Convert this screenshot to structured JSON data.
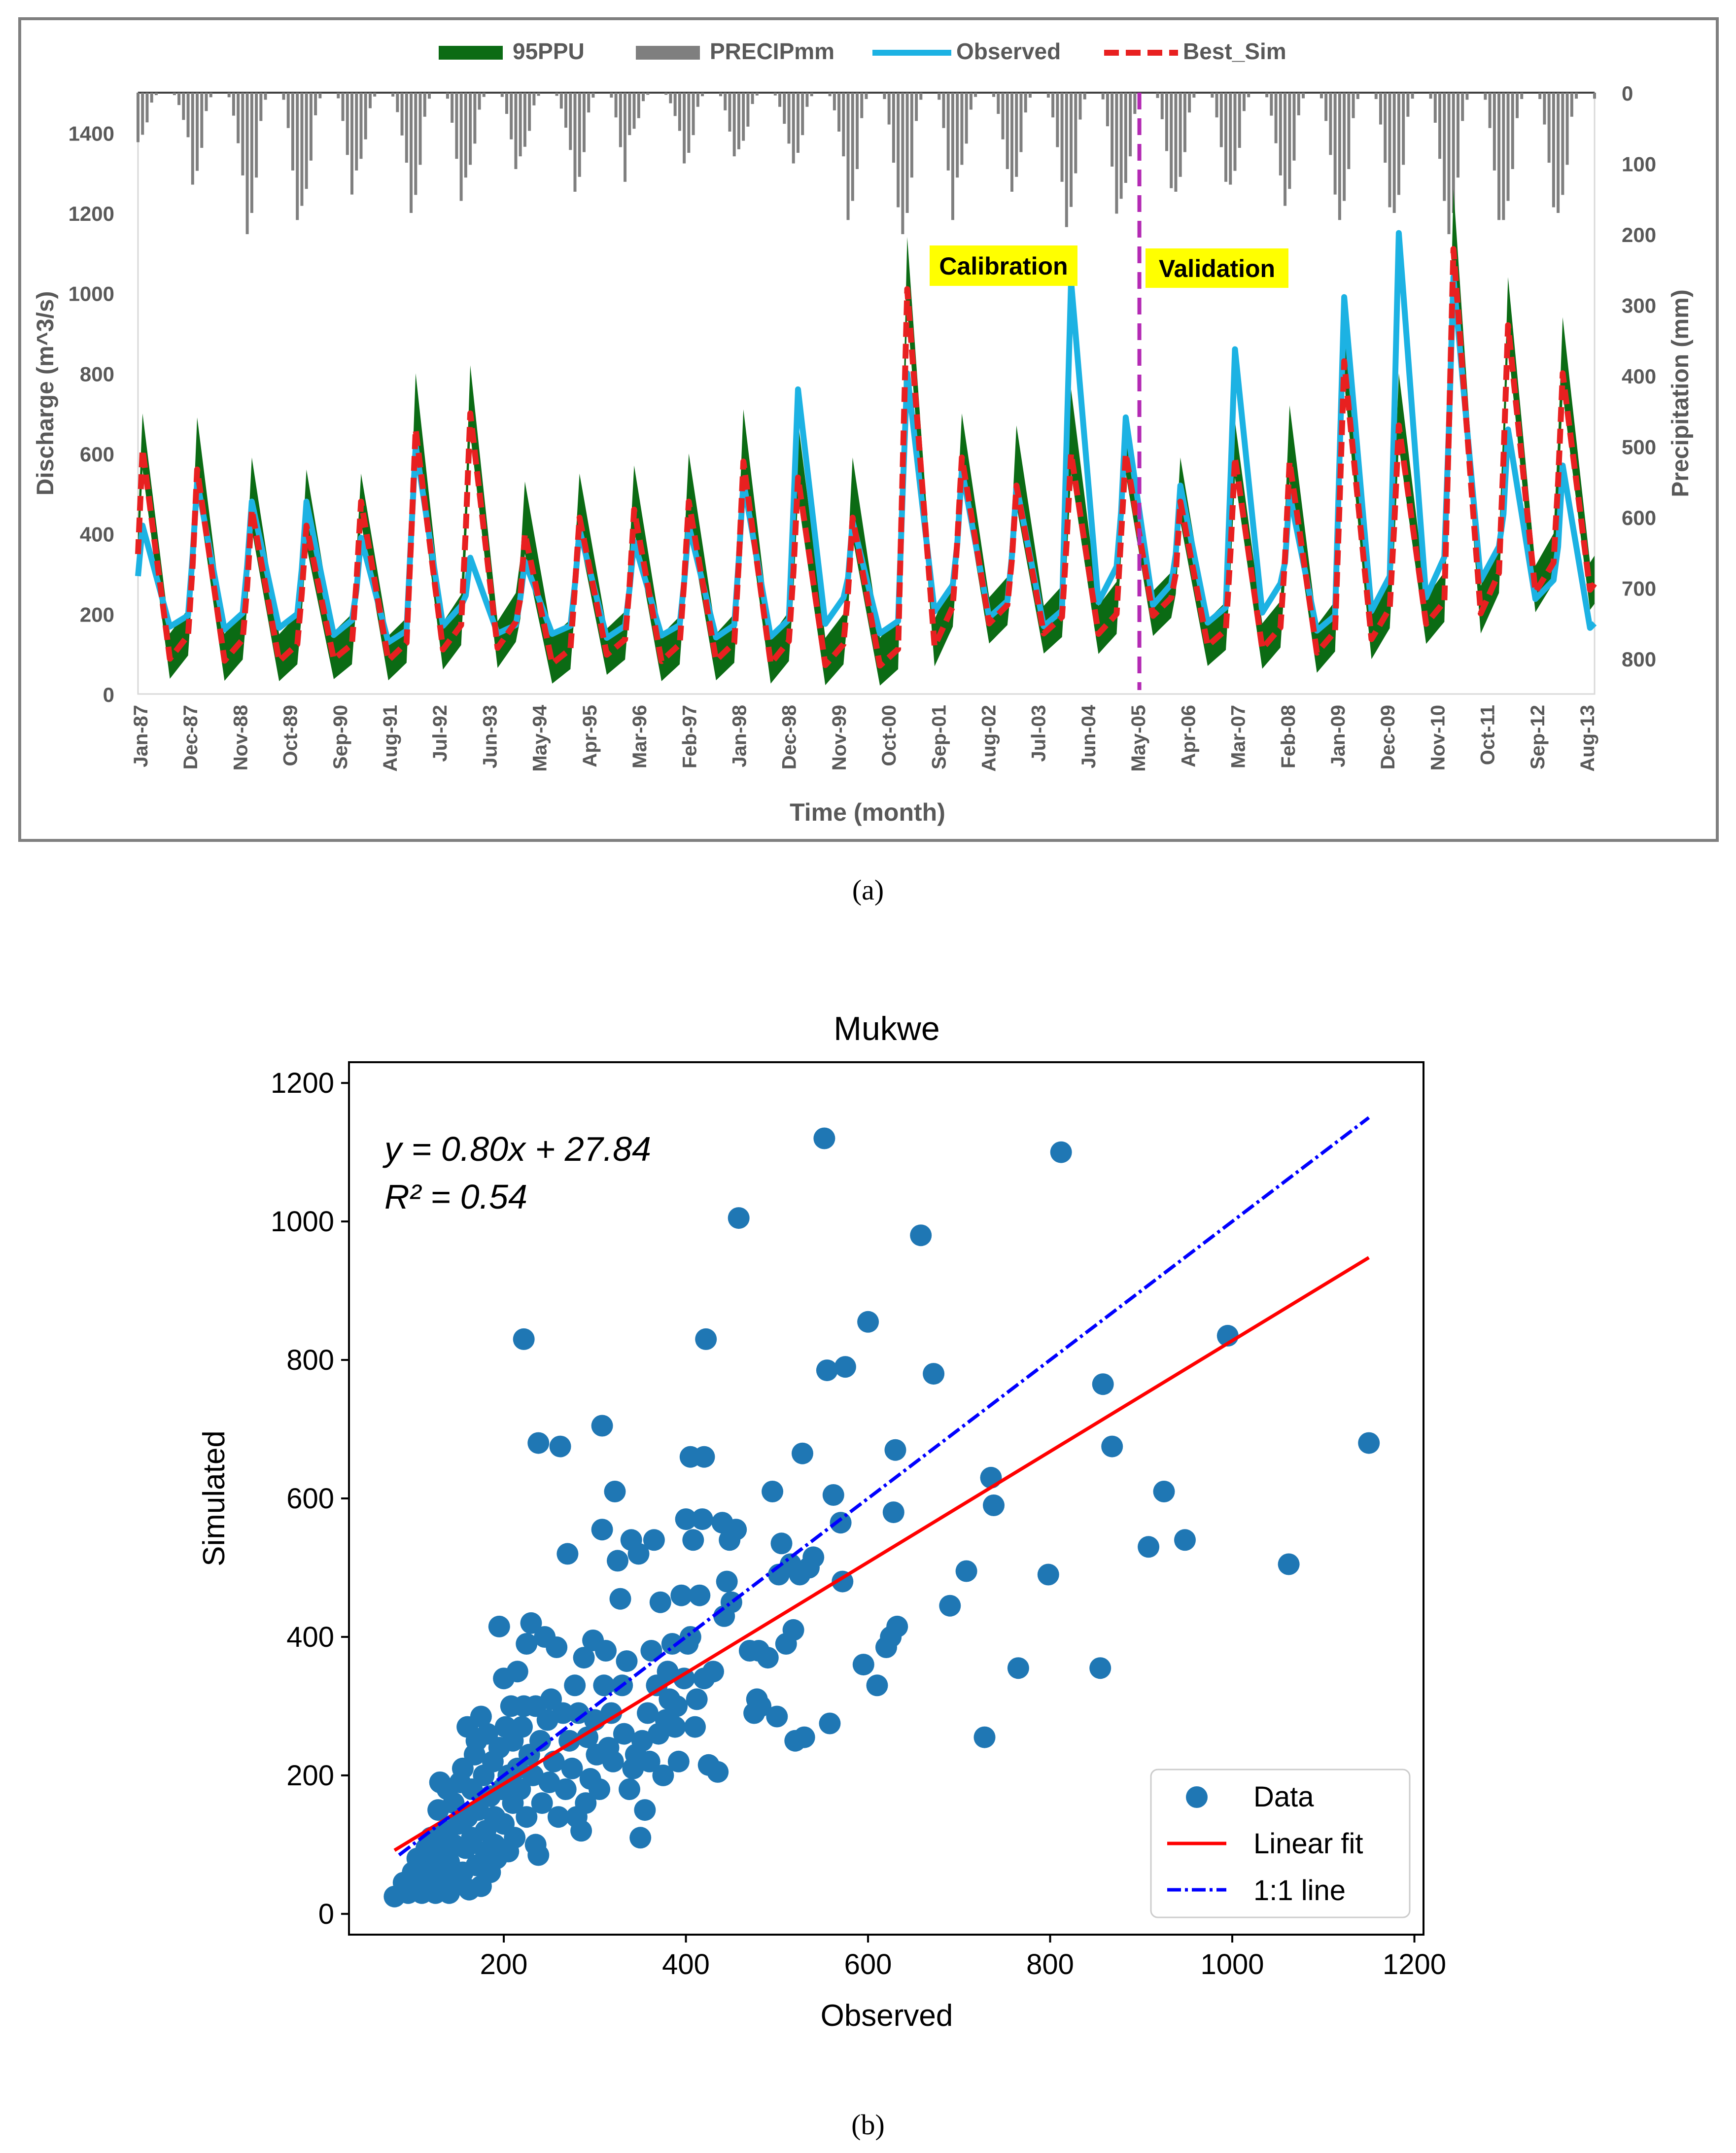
{
  "panel_a": {
    "label": "(a)"
  },
  "panel_b": {
    "label": "(b)"
  },
  "colors": {
    "ppu": "#0b6b14",
    "precip": "#7f7f7f",
    "observed": "#1cb2e3",
    "best_sim": "#e82020",
    "split_line": "#b42ab4",
    "highlight": "#ffff00",
    "scatter": "#1f77b4",
    "fit": "#ff0000",
    "one_to_one": "#0000ff"
  },
  "chart_data": [
    {
      "type": "line",
      "title": "",
      "xlabel": "Time (month)",
      "ylabel": "Discharge (m^3/s)",
      "y2label": "Precipitation (mm)",
      "ylim": [
        0,
        1500
      ],
      "y2lim": [
        0,
        850
      ],
      "yticks": [
        0,
        200,
        400,
        600,
        800,
        1000,
        1200,
        1400
      ],
      "y2ticks": [
        0,
        100,
        200,
        300,
        400,
        500,
        600,
        700,
        800
      ],
      "legend": [
        "95PPU",
        "PRECIPmm",
        "Observed",
        "Best_Sim"
      ],
      "x_tick_labels": [
        "Jan-87",
        "Dec-87",
        "Nov-88",
        "Oct-89",
        "Sep-90",
        "Aug-91",
        "Jul-92",
        "Jun-93",
        "May-94",
        "Apr-95",
        "Mar-96",
        "Feb-97",
        "Jan-98",
        "Dec-98",
        "Nov-99",
        "Oct-00",
        "Sep-01",
        "Aug-02",
        "Jul-03",
        "Jun-04",
        "May-05",
        "Apr-06",
        "Mar-07",
        "Feb-08",
        "Jan-09",
        "Dec-09",
        "Nov-10",
        "Oct-11",
        "Sep-12",
        "Aug-13"
      ],
      "annotations": [
        "Calibration",
        "Validation"
      ],
      "split_month_index": 220,
      "series": [
        {
          "name": "Observed",
          "annual_peaks": [
            420,
            530,
            480,
            480,
            390,
            620,
            340,
            330,
            410,
            380,
            420,
            530,
            760,
            430,
            800,
            560,
            520,
            1030,
            690,
            520,
            860,
            500,
            990,
            1150,
            1040,
            660,
            570
          ],
          "annual_lows": [
            140,
            120,
            130,
            110,
            100,
            120,
            130,
            130,
            110,
            120,
            110,
            100,
            110,
            120,
            140,
            150,
            130,
            140,
            170,
            140,
            130,
            120,
            120,
            140,
            200,
            190,
            120
          ]
        },
        {
          "name": "Best_Sim",
          "annual_peaks": [
            610,
            560,
            460,
            420,
            480,
            660,
            700,
            400,
            440,
            460,
            480,
            580,
            540,
            440,
            1010,
            590,
            520,
            600,
            600,
            480,
            590,
            580,
            830,
            670,
            1110,
            920,
            800
          ],
          "annual_lows": [
            30,
            30,
            40,
            50,
            40,
            50,
            50,
            40,
            60,
            40,
            40,
            20,
            20,
            30,
            20,
            130,
            110,
            100,
            150,
            80,
            60,
            50,
            60,
            120,
            100,
            180,
            200
          ]
        },
        {
          "name": "95PPU_upper",
          "annual_peaks": [
            700,
            690,
            590,
            560,
            550,
            800,
            820,
            530,
            550,
            570,
            600,
            710,
            680,
            590,
            1140,
            700,
            670,
            760,
            680,
            590,
            680,
            720,
            960,
            800,
            1260,
            1040,
            940
          ]
        },
        {
          "name": "PRECIPmm",
          "monthly_max_by_year": [
            70,
            130,
            200,
            160,
            110,
            170,
            120,
            90,
            140,
            60,
            100,
            80,
            100,
            180,
            200,
            120,
            140,
            190,
            150,
            140,
            130,
            160,
            180,
            170,
            200,
            180,
            170
          ]
        }
      ]
    },
    {
      "type": "scatter",
      "title": "Mukwe",
      "xlabel": "Observed",
      "ylabel": "Simulated",
      "xlim": [
        30,
        1210
      ],
      "ylim": [
        -30,
        1230
      ],
      "xticks": [
        200,
        400,
        600,
        800,
        1000,
        1200
      ],
      "yticks": [
        0,
        200,
        400,
        600,
        800,
        1000,
        1200
      ],
      "equation": "y = 0.80x + 27.84",
      "r2": "R² = 0.54",
      "fit": {
        "slope": 0.8,
        "intercept": 27.84,
        "x_range": [
          80,
          1150
        ]
      },
      "one_to_one": {
        "x_range": [
          85,
          1150
        ]
      },
      "legend": [
        "Data",
        "Linear fit",
        "1:1 line"
      ],
      "points": [
        [
          80,
          25
        ],
        [
          90,
          45
        ],
        [
          95,
          30
        ],
        [
          100,
          60
        ],
        [
          100,
          35
        ],
        [
          105,
          80
        ],
        [
          110,
          50
        ],
        [
          110,
          30
        ],
        [
          115,
          95
        ],
        [
          115,
          60
        ],
        [
          120,
          110
        ],
        [
          120,
          40
        ],
        [
          125,
          70
        ],
        [
          125,
          30
        ],
        [
          128,
          150
        ],
        [
          130,
          190
        ],
        [
          130,
          90
        ],
        [
          135,
          55
        ],
        [
          135,
          120
        ],
        [
          138,
          180
        ],
        [
          140,
          30
        ],
        [
          140,
          75
        ],
        [
          145,
          160
        ],
        [
          145,
          100
        ],
        [
          150,
          45
        ],
        [
          150,
          130
        ],
        [
          152,
          190
        ],
        [
          155,
          60
        ],
        [
          155,
          210
        ],
        [
          158,
          95
        ],
        [
          160,
          140
        ],
        [
          160,
          270
        ],
        [
          162,
          35
        ],
        [
          165,
          110
        ],
        [
          165,
          180
        ],
        [
          168,
          230
        ],
        [
          170,
          70
        ],
        [
          170,
          250
        ],
        [
          172,
          150
        ],
        [
          175,
          285
        ],
        [
          175,
          40
        ],
        [
          178,
          200
        ],
        [
          180,
          120
        ],
        [
          180,
          90
        ],
        [
          182,
          260
        ],
        [
          185,
          170
        ],
        [
          185,
          60
        ],
        [
          188,
          220
        ],
        [
          190,
          140
        ],
        [
          190,
          100
        ],
        [
          192,
          80
        ],
        [
          195,
          415
        ],
        [
          195,
          240
        ],
        [
          198,
          180
        ],
        [
          200,
          340
        ],
        [
          200,
          130
        ],
        [
          202,
          270
        ],
        [
          205,
          200
        ],
        [
          205,
          90
        ],
        [
          208,
          300
        ],
        [
          210,
          160
        ],
        [
          210,
          250
        ],
        [
          212,
          110
        ],
        [
          215,
          350
        ],
        [
          215,
          210
        ],
        [
          218,
          180
        ],
        [
          220,
          270
        ],
        [
          222,
          300
        ],
        [
          222,
          830
        ],
        [
          225,
          140
        ],
        [
          225,
          390
        ],
        [
          228,
          230
        ],
        [
          230,
          420
        ],
        [
          232,
          200
        ],
        [
          235,
          300
        ],
        [
          235,
          100
        ],
        [
          238,
          85
        ],
        [
          238,
          680
        ],
        [
          240,
          250
        ],
        [
          242,
          160
        ],
        [
          245,
          400
        ],
        [
          248,
          280
        ],
        [
          250,
          190
        ],
        [
          252,
          310
        ],
        [
          255,
          220
        ],
        [
          258,
          385
        ],
        [
          260,
          140
        ],
        [
          262,
          675
        ],
        [
          265,
          290
        ],
        [
          268,
          180
        ],
        [
          270,
          520
        ],
        [
          272,
          250
        ],
        [
          275,
          210
        ],
        [
          278,
          330
        ],
        [
          280,
          140
        ],
        [
          282,
          290
        ],
        [
          285,
          120
        ],
        [
          288,
          370
        ],
        [
          290,
          160
        ],
        [
          292,
          255
        ],
        [
          295,
          195
        ],
        [
          298,
          395
        ],
        [
          300,
          280
        ],
        [
          302,
          230
        ],
        [
          305,
          180
        ],
        [
          308,
          705
        ],
        [
          308,
          555
        ],
        [
          310,
          330
        ],
        [
          312,
          380
        ],
        [
          315,
          240
        ],
        [
          318,
          290
        ],
        [
          320,
          220
        ],
        [
          322,
          610
        ],
        [
          325,
          510
        ],
        [
          328,
          455
        ],
        [
          330,
          330
        ],
        [
          332,
          260
        ],
        [
          335,
          365
        ],
        [
          338,
          180
        ],
        [
          340,
          540
        ],
        [
          342,
          210
        ],
        [
          345,
          230
        ],
        [
          348,
          520
        ],
        [
          350,
          110
        ],
        [
          352,
          250
        ],
        [
          355,
          150
        ],
        [
          358,
          290
        ],
        [
          360,
          220
        ],
        [
          362,
          380
        ],
        [
          365,
          540
        ],
        [
          368,
          330
        ],
        [
          370,
          260
        ],
        [
          372,
          450
        ],
        [
          375,
          200
        ],
        [
          378,
          280
        ],
        [
          380,
          350
        ],
        [
          382,
          310
        ],
        [
          385,
          390
        ],
        [
          388,
          270
        ],
        [
          390,
          300
        ],
        [
          392,
          220
        ],
        [
          395,
          460
        ],
        [
          398,
          340
        ],
        [
          400,
          570
        ],
        [
          402,
          390
        ],
        [
          405,
          660
        ],
        [
          405,
          400
        ],
        [
          408,
          540
        ],
        [
          410,
          270
        ],
        [
          412,
          310
        ],
        [
          415,
          460
        ],
        [
          418,
          570
        ],
        [
          420,
          660
        ],
        [
          420,
          340
        ],
        [
          422,
          830
        ],
        [
          425,
          215
        ],
        [
          430,
          350
        ],
        [
          435,
          205
        ],
        [
          440,
          565
        ],
        [
          442,
          430
        ],
        [
          445,
          480
        ],
        [
          448,
          540
        ],
        [
          450,
          450
        ],
        [
          455,
          555
        ],
        [
          458,
          1005
        ],
        [
          470,
          380
        ],
        [
          475,
          290
        ],
        [
          478,
          310
        ],
        [
          480,
          380
        ],
        [
          482,
          300
        ],
        [
          490,
          370
        ],
        [
          495,
          610
        ],
        [
          500,
          285
        ],
        [
          502,
          490
        ],
        [
          505,
          535
        ],
        [
          510,
          390
        ],
        [
          515,
          505
        ],
        [
          518,
          410
        ],
        [
          520,
          250
        ],
        [
          525,
          490
        ],
        [
          528,
          665
        ],
        [
          530,
          255
        ],
        [
          535,
          500
        ],
        [
          540,
          515
        ],
        [
          552,
          1120
        ],
        [
          555,
          785
        ],
        [
          558,
          275
        ],
        [
          562,
          605
        ],
        [
          570,
          565
        ],
        [
          572,
          480
        ],
        [
          575,
          790
        ],
        [
          595,
          360
        ],
        [
          600,
          855
        ],
        [
          610,
          330
        ],
        [
          620,
          385
        ],
        [
          625,
          400
        ],
        [
          628,
          580
        ],
        [
          630,
          670
        ],
        [
          632,
          415
        ],
        [
          658,
          980
        ],
        [
          672,
          780
        ],
        [
          690,
          445
        ],
        [
          708,
          495
        ],
        [
          728,
          255
        ],
        [
          735,
          630
        ],
        [
          738,
          590
        ],
        [
          765,
          355
        ],
        [
          798,
          490
        ],
        [
          812,
          1100
        ],
        [
          855,
          355
        ],
        [
          858,
          765
        ],
        [
          868,
          675
        ],
        [
          908,
          530
        ],
        [
          925,
          610
        ],
        [
          948,
          540
        ],
        [
          995,
          835
        ],
        [
          1062,
          505
        ],
        [
          1150,
          680
        ]
      ]
    }
  ]
}
